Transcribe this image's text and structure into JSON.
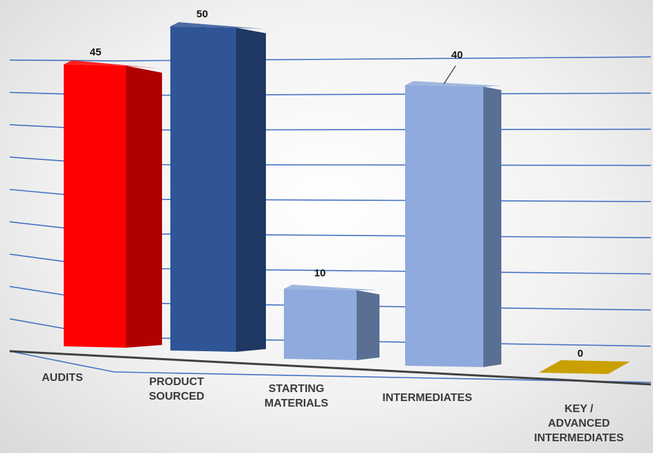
{
  "chart_data": {
    "type": "bar",
    "style": "3d-perspective",
    "categories": [
      "AUDITS",
      "PRODUCT SOURCED",
      "STARTING MATERIALS",
      "INTERMEDIATES",
      "KEY / ADVANCED INTERMEDIATES"
    ],
    "category_lines": [
      [
        "AUDITS"
      ],
      [
        "PRODUCT",
        "SOURCED"
      ],
      [
        "STARTING",
        "MATERIALS"
      ],
      [
        "INTERMEDIATES"
      ],
      [
        "KEY /",
        "ADVANCED",
        "INTERMEDIATES"
      ]
    ],
    "values": [
      45,
      50,
      10,
      40,
      0
    ],
    "value_labels": [
      "45",
      "50",
      "10",
      "40",
      "0"
    ],
    "colors": [
      "#ff0000",
      "#2f5597",
      "#8faadc",
      "#8faadc",
      "#c9a000"
    ],
    "side_colors": [
      "#b00000",
      "#1f3864",
      "#5a6f94",
      "#5a6f94",
      "#a88400"
    ],
    "ylim": [
      0,
      50
    ],
    "grid": true,
    "gridline_color": "#4472c4",
    "legend": "none",
    "title": "",
    "xlabel": "",
    "ylabel": ""
  }
}
